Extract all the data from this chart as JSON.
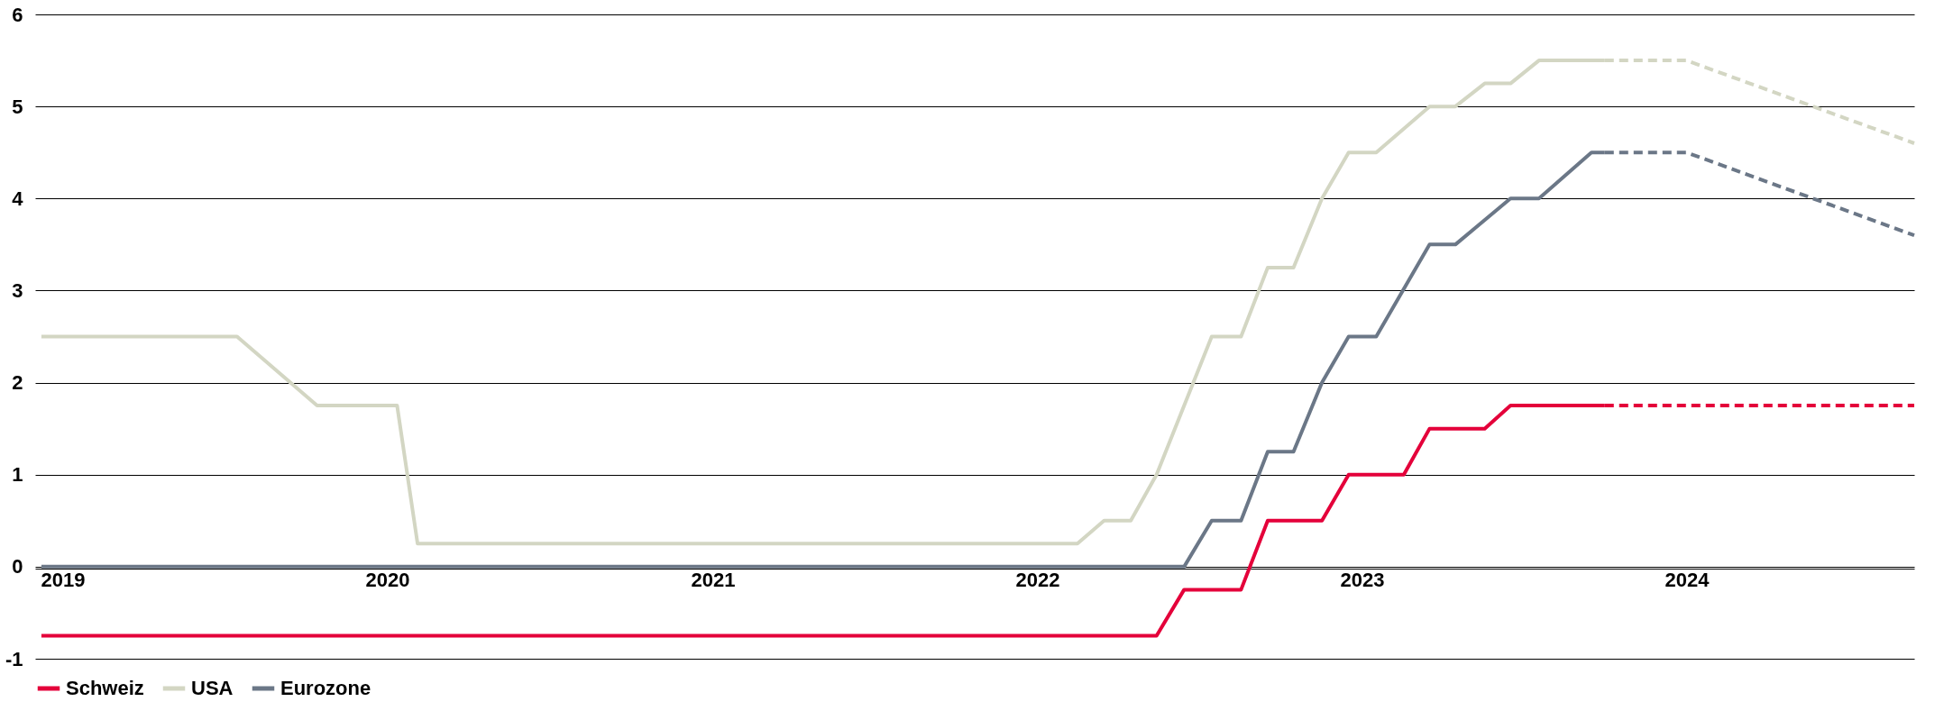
{
  "chart_data": {
    "type": "line",
    "xlim": [
      "2018-12-01",
      "2024-09-13"
    ],
    "ylim": [
      -1,
      6
    ],
    "yticks": [
      -1,
      0,
      1,
      2,
      3,
      4,
      5,
      6
    ],
    "xticks": [
      "2019",
      "2020",
      "2021",
      "2022",
      "2023",
      "2024"
    ],
    "grid": "y",
    "legend": "bottom",
    "line_style": "solid",
    "series": [
      {
        "name": "Schweiz",
        "color": "#e4003a",
        "x": [
          "2018-12-08",
          "2022-05-15",
          "2022-06-15",
          "2022-08-18",
          "2022-09-17",
          "2022-11-17",
          "2022-12-17",
          "2023-02-17",
          "2023-03-18",
          "2023-05-19",
          "2023-06-17",
          "2023-10-01"
        ],
        "values": [
          -0.75,
          -0.75,
          -0.25,
          -0.25,
          0.5,
          0.5,
          1.0,
          1.0,
          1.5,
          1.5,
          1.75,
          1.75
        ]
      },
      {
        "name": "USA",
        "color": "#d3d6c3",
        "x": [
          "2018-12-08",
          "2019-07-16",
          "2019-10-14",
          "2020-01-12",
          "2020-02-04",
          "2022-02-15",
          "2022-03-17",
          "2022-04-16",
          "2022-05-15",
          "2022-07-16",
          "2022-08-18",
          "2022-09-17",
          "2022-10-16",
          "2022-11-17",
          "2022-12-17",
          "2023-01-17",
          "2023-03-18",
          "2023-04-16",
          "2023-05-19",
          "2023-06-17",
          "2023-07-19",
          "2023-10-01"
        ],
        "values": [
          2.5,
          2.5,
          1.75,
          1.75,
          0.25,
          0.25,
          0.5,
          0.5,
          1.0,
          2.5,
          2.5,
          3.25,
          3.25,
          4.0,
          4.5,
          4.5,
          5.0,
          5.0,
          5.25,
          5.25,
          5.5,
          5.5
        ]
      },
      {
        "name": "Eurozone",
        "color": "#6b7787",
        "x": [
          "2018-12-08",
          "2022-06-15",
          "2022-07-16",
          "2022-08-18",
          "2022-09-17",
          "2022-10-16",
          "2022-11-17",
          "2022-12-17",
          "2023-01-17",
          "2023-03-18",
          "2023-04-16",
          "2023-06-17",
          "2023-07-19",
          "2023-09-16",
          "2023-10-01"
        ],
        "values": [
          0,
          0,
          0.5,
          0.5,
          1.25,
          1.25,
          2.0,
          2.5,
          2.5,
          3.5,
          3.5,
          4.0,
          4.0,
          4.5,
          4.5
        ]
      },
      {
        "color": "#e4003a",
        "line_style": "dashed",
        "x": [
          "2023-10-01",
          "2024-09-13"
        ],
        "values": [
          1.75,
          1.75
        ]
      },
      {
        "color": "#d3d6c3",
        "line_style": "dashed",
        "x": [
          "2023-10-01",
          "2024-01-01",
          "2024-09-13"
        ],
        "values": [
          5.5,
          5.5,
          4.6
        ]
      },
      {
        "color": "#6b7787",
        "line_style": "dashed",
        "x": [
          "2023-10-01",
          "2024-01-01",
          "2024-09-13"
        ],
        "values": [
          4.5,
          4.5,
          3.6
        ]
      }
    ]
  }
}
